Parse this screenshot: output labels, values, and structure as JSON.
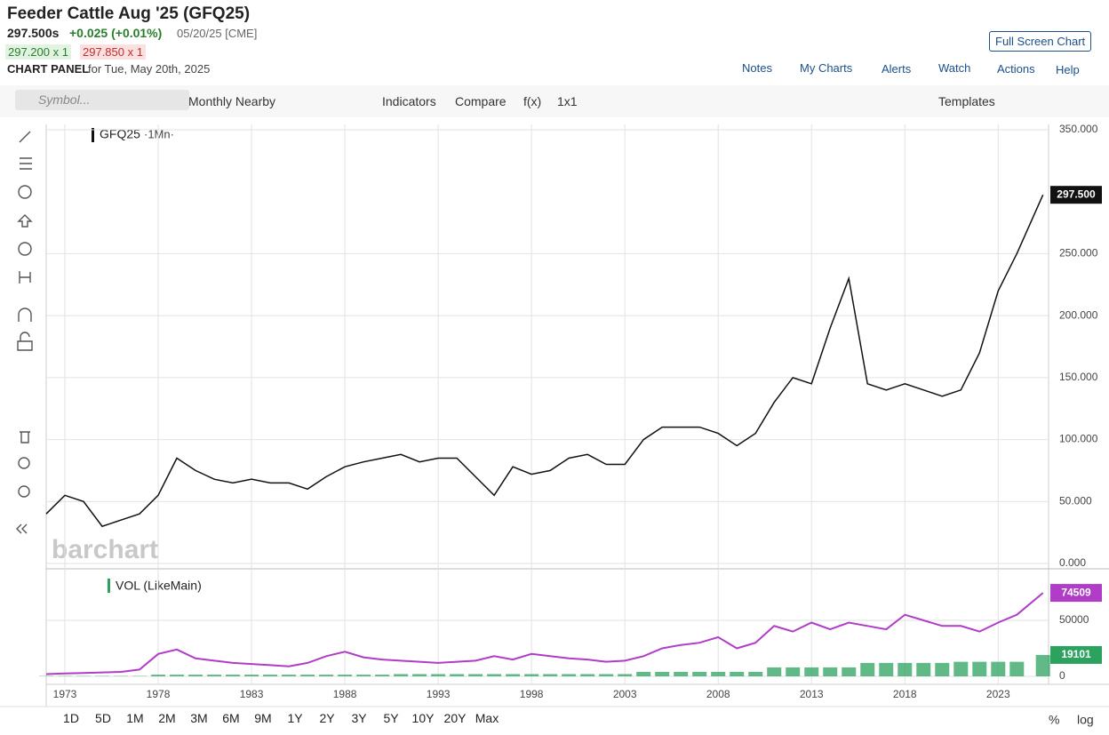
{
  "header": {
    "title": "Feeder Cattle Aug '25 (GFQ25)",
    "price": "297.500s",
    "change": "+0.025 (+0.01%)",
    "timestamp": "05/20/25 [CME]",
    "bid": "297.200 x 1",
    "ask": "297.850 x 1",
    "panel_label": "CHART PANEL",
    "panel_date": "for Tue, May 20th, 2025",
    "full_screen": "Full Screen Chart",
    "menu": [
      "Notes",
      "My Charts",
      "Alerts",
      "Watch",
      "Actions",
      "Help"
    ]
  },
  "toolbar": {
    "symbol_placeholder": "Symbol...",
    "interval": "Monthly Nearby",
    "items": [
      "Indicators",
      "Compare",
      "f(x)",
      "1x1"
    ],
    "templates": "Templates"
  },
  "watermark": "barchart",
  "ranges": [
    "1D",
    "5D",
    "1M",
    "2M",
    "3M",
    "6M",
    "9M",
    "1Y",
    "2Y",
    "3Y",
    "5Y",
    "10Y",
    "20Y",
    "Max"
  ],
  "scale_options": [
    "%",
    "log"
  ],
  "chart_data": [
    {
      "type": "line",
      "title": "GFQ25",
      "subtitle": "·1Mn·",
      "x": [
        1972,
        1973,
        1974,
        1975,
        1976,
        1977,
        1978,
        1979,
        1980,
        1981,
        1982,
        1983,
        1984,
        1985,
        1986,
        1987,
        1988,
        1989,
        1990,
        1991,
        1992,
        1993,
        1994,
        1995,
        1996,
        1997,
        1998,
        1999,
        2000,
        2001,
        2002,
        2003,
        2004,
        2005,
        2006,
        2007,
        2008,
        2009,
        2010,
        2011,
        2012,
        2013,
        2014,
        2015,
        2016,
        2017,
        2018,
        2019,
        2020,
        2021,
        2022,
        2023,
        2024,
        2025.4
      ],
      "series": [
        {
          "color": "#111111",
          "values": [
            40,
            55,
            50,
            30,
            35,
            40,
            55,
            85,
            75,
            68,
            65,
            68,
            65,
            65,
            60,
            70,
            78,
            82,
            85,
            88,
            82,
            85,
            85,
            70,
            55,
            78,
            72,
            75,
            85,
            88,
            80,
            80,
            100,
            110,
            110,
            110,
            105,
            95,
            105,
            130,
            150,
            145,
            190,
            230,
            145,
            140,
            145,
            140,
            135,
            140,
            170,
            220,
            250,
            297.5
          ],
          "value_labels": [
            null,
            null,
            null,
            null,
            null,
            null,
            null,
            null,
            null,
            null,
            null,
            null,
            null,
            null,
            null,
            null,
            null,
            null,
            null,
            null,
            null,
            null,
            null,
            null,
            null,
            null,
            null,
            null,
            null,
            null,
            null,
            null,
            null,
            null,
            null,
            null,
            null,
            null,
            null,
            null,
            null,
            null,
            null,
            null,
            null,
            null,
            null,
            null,
            null,
            null,
            null,
            null,
            null,
            "297.500"
          ]
        }
      ],
      "xlim": [
        1972,
        2025.7
      ],
      "xticks": [
        1973,
        1978,
        1983,
        1988,
        1993,
        1998,
        2003,
        2008,
        2013,
        2018,
        2023
      ],
      "ylim": [
        0,
        350
      ],
      "yticks": [
        {
          "value": 0,
          "label": "0.000"
        },
        {
          "value": 50,
          "label": "50.000"
        },
        {
          "value": 100,
          "label": "100.000"
        },
        {
          "value": 150,
          "label": "150.000"
        },
        {
          "value": 200,
          "label": "200.000"
        },
        {
          "value": 250,
          "label": "250.000"
        },
        {
          "value": 350,
          "label": "350.000"
        }
      ],
      "grid": true
    },
    {
      "type": "line",
      "title": "VOL (LikeMain)",
      "x": [
        1972,
        1973,
        1974,
        1975,
        1976,
        1977,
        1978,
        1979,
        1980,
        1981,
        1982,
        1983,
        1984,
        1985,
        1986,
        1987,
        1988,
        1989,
        1990,
        1991,
        1992,
        1993,
        1994,
        1995,
        1996,
        1997,
        1998,
        1999,
        2000,
        2001,
        2002,
        2003,
        2004,
        2005,
        2006,
        2007,
        2008,
        2009,
        2010,
        2011,
        2012,
        2013,
        2014,
        2015,
        2016,
        2017,
        2018,
        2019,
        2020,
        2021,
        2022,
        2023,
        2024,
        2025.4
      ],
      "series": [
        {
          "color": "#b03cc8",
          "values": [
            2000,
            2500,
            3000,
            3500,
            4000,
            6000,
            20000,
            24000,
            16000,
            14000,
            12000,
            11000,
            10000,
            9000,
            12000,
            18000,
            22000,
            17000,
            15000,
            14000,
            13000,
            12000,
            13000,
            14000,
            18000,
            15000,
            20000,
            18000,
            16000,
            15000,
            13000,
            14000,
            18000,
            25000,
            28000,
            30000,
            35000,
            25000,
            30000,
            45000,
            40000,
            48000,
            42000,
            48000,
            45000,
            42000,
            55000,
            50000,
            45000,
            45000,
            40000,
            48000,
            55000,
            74509
          ]
        },
        {
          "type": "bar",
          "color": "#2ca25f",
          "values": [
            300,
            300,
            300,
            300,
            300,
            300,
            1500,
            1500,
            1500,
            1500,
            1500,
            1500,
            1500,
            1500,
            1500,
            1500,
            1500,
            1500,
            1500,
            2000,
            2000,
            2000,
            2000,
            2000,
            2000,
            2000,
            2000,
            2000,
            2000,
            2000,
            2000,
            2000,
            4000,
            4000,
            4000,
            4000,
            4000,
            4000,
            4000,
            8000,
            8000,
            8000,
            8000,
            8000,
            12000,
            12000,
            12000,
            12000,
            12000,
            13000,
            13000,
            13000,
            13000,
            19101
          ]
        }
      ],
      "xlim": [
        1972,
        2025.7
      ],
      "ylim": [
        0,
        96000
      ],
      "yticks": [
        0,
        50000
      ],
      "grid": true
    }
  ]
}
